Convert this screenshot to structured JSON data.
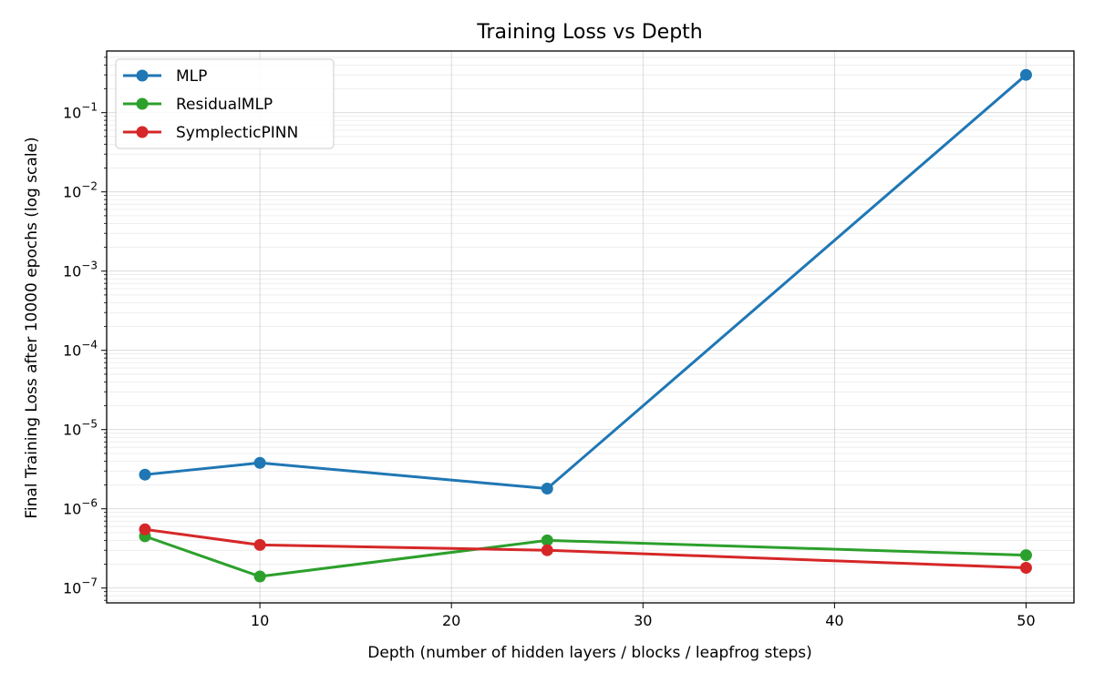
{
  "chart_data": {
    "type": "line",
    "title": "Training Loss vs Depth",
    "xlabel": "Depth (number of hidden layers / blocks / leapfrog steps)",
    "ylabel": "Final Training Loss after 10000 epochs (log scale)",
    "xlim": [
      2,
      52.5
    ],
    "ylim": [
      6.5e-08,
      0.6
    ],
    "yscale": "log",
    "grid": true,
    "legend_position": "top-left",
    "x_ticks": [
      10,
      20,
      30,
      40,
      50
    ],
    "y_ticks": [
      {
        "value": 1e-07,
        "base": "10",
        "exp": "−7"
      },
      {
        "value": 1e-06,
        "base": "10",
        "exp": "−6"
      },
      {
        "value": 1e-05,
        "base": "10",
        "exp": "−5"
      },
      {
        "value": 0.0001,
        "base": "10",
        "exp": "−4"
      },
      {
        "value": 0.001,
        "base": "10",
        "exp": "−3"
      },
      {
        "value": 0.01,
        "base": "10",
        "exp": "−2"
      },
      {
        "value": 0.1,
        "base": "10",
        "exp": "−1"
      }
    ],
    "x": [
      4,
      10,
      25,
      50
    ],
    "series": [
      {
        "name": "MLP",
        "color": "#1f77b4",
        "values": [
          2.7e-06,
          3.8e-06,
          1.8e-06,
          0.3
        ]
      },
      {
        "name": "ResidualMLP",
        "color": "#2ca02c",
        "values": [
          4.5e-07,
          1.4e-07,
          4e-07,
          2.6e-07
        ]
      },
      {
        "name": "SymplecticPINN",
        "color": "#d62728",
        "values": [
          5.5e-07,
          3.5e-07,
          3e-07,
          1.8e-07
        ]
      }
    ]
  }
}
